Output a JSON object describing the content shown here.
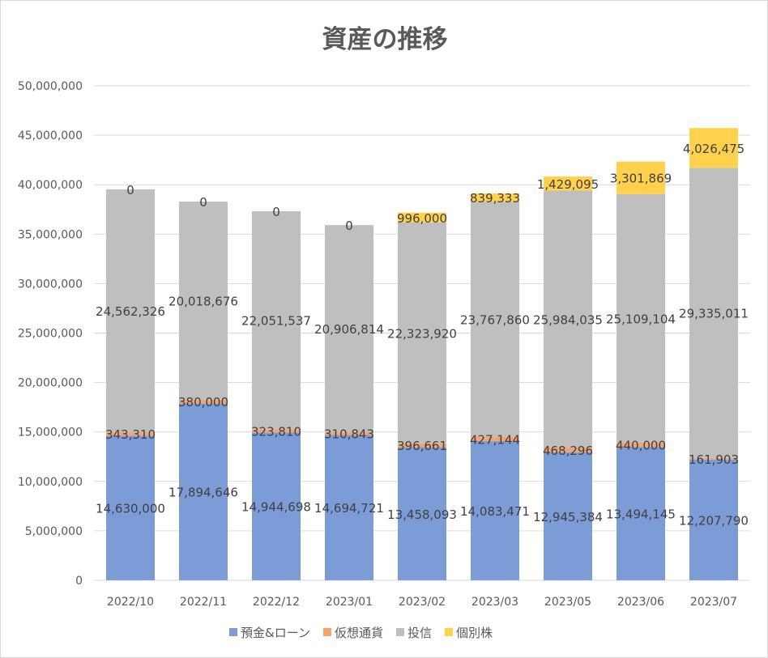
{
  "chart_data": {
    "type": "bar",
    "stacked": true,
    "title": "資産の推移",
    "xlabel": "",
    "ylabel": "",
    "ylim": [
      0,
      50000000
    ],
    "yticks": [
      0,
      5000000,
      10000000,
      15000000,
      20000000,
      25000000,
      30000000,
      35000000,
      40000000,
      45000000,
      50000000
    ],
    "ytick_labels": [
      "0",
      "5,000,000",
      "10,000,000",
      "15,000,000",
      "20,000,000",
      "25,000,000",
      "30,000,000",
      "35,000,000",
      "40,000,000",
      "45,000,000",
      "50,000,000"
    ],
    "grid": true,
    "legend": "bottom",
    "categories": [
      "2022/10",
      "2022/11",
      "2022/12",
      "2023/01",
      "2023/02",
      "2023/03",
      "2023/05",
      "2023/06",
      "2023/07"
    ],
    "series": [
      {
        "name": "預金&ローン",
        "color": "#7B9CD7",
        "values": [
          14630000,
          17894646,
          14944698,
          14694721,
          13458093,
          14083471,
          12945384,
          13494145,
          12207790
        ]
      },
      {
        "name": "仮想通貨",
        "color": "#F4A46C",
        "values": [
          343310,
          380000,
          323810,
          310843,
          396661,
          427144,
          468296,
          440000,
          161903
        ]
      },
      {
        "name": "投信",
        "color": "#BFBFBF",
        "values": [
          24562326,
          20018676,
          22051537,
          20906814,
          22323920,
          23767860,
          25984035,
          25109104,
          29335011
        ]
      },
      {
        "name": "個別株",
        "color": "#FFD14D",
        "values": [
          0,
          0,
          0,
          0,
          996000,
          839333,
          1429095,
          3301869,
          4026475
        ]
      }
    ]
  }
}
